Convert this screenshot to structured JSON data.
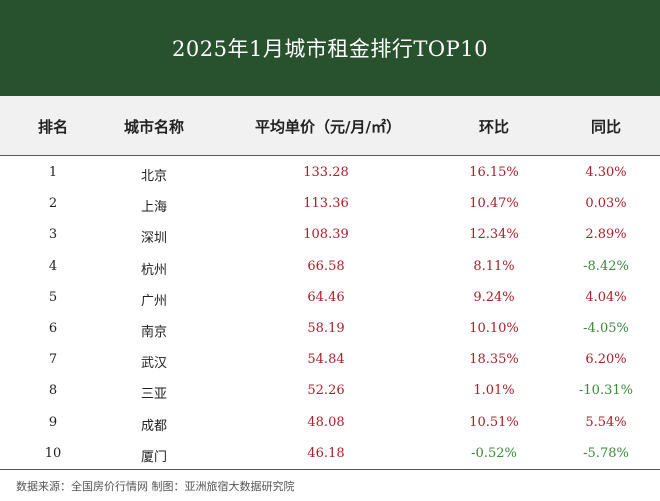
{
  "title": "2025年1月城市租金排行TOP10",
  "headers": {
    "rank": "排名",
    "city": "城市名称",
    "price": "平均单价（元/月/㎡）",
    "mom": "环比",
    "yoy": "同比"
  },
  "rows": [
    {
      "rank": "1",
      "city": "北京",
      "price": "133.28",
      "mom": "16.15%",
      "yoy": "4.30%"
    },
    {
      "rank": "2",
      "city": "上海",
      "price": "113.36",
      "mom": "10.47%",
      "yoy": "0.03%"
    },
    {
      "rank": "3",
      "city": "深圳",
      "price": "108.39",
      "mom": "12.34%",
      "yoy": "2.89%"
    },
    {
      "rank": "4",
      "city": "杭州",
      "price": "66.58",
      "mom": "8.11%",
      "yoy": "-8.42%"
    },
    {
      "rank": "5",
      "city": "广州",
      "price": "64.46",
      "mom": "9.24%",
      "yoy": "4.04%"
    },
    {
      "rank": "6",
      "city": "南京",
      "price": "58.19",
      "mom": "10.10%",
      "yoy": "-4.05%"
    },
    {
      "rank": "7",
      "city": "武汉",
      "price": "54.84",
      "mom": "18.35%",
      "yoy": "6.20%"
    },
    {
      "rank": "8",
      "city": "三亚",
      "price": "52.26",
      "mom": "1.01%",
      "yoy": "-10.31%"
    },
    {
      "rank": "9",
      "city": "成都",
      "price": "48.08",
      "mom": "10.51%",
      "yoy": "5.54%"
    },
    {
      "rank": "10",
      "city": "厦门",
      "price": "46.18",
      "mom": "-0.52%",
      "yoy": "-5.78%"
    }
  ],
  "footer": "数据来源：全国房价行情网  制图：亚洲旅宿大数据研究院",
  "colors": {
    "title_bg": "#27522d",
    "positive": "#a8202a",
    "negative": "#3a8a3a",
    "header_bg": "#f1f1f1"
  }
}
